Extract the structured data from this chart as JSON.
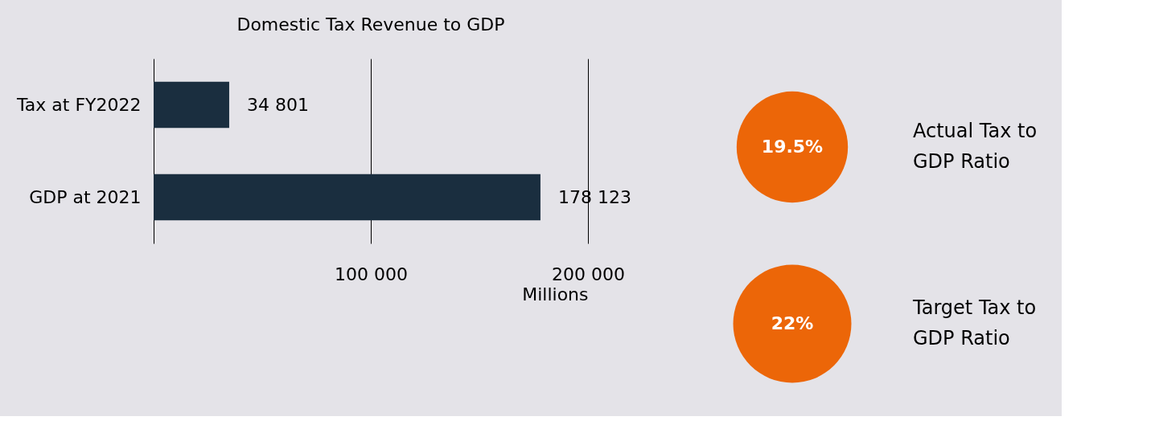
{
  "chart_data": [
    {
      "type": "bar",
      "orientation": "horizontal",
      "title": "Domestic Tax Revenue to GDP",
      "categories": [
        "Tax at FY2022",
        "GDP at 2021"
      ],
      "values": [
        34801,
        178123
      ],
      "color": "#1a2e3f",
      "value_labels": [
        "34 801",
        "178 123"
      ],
      "xlim": [
        0,
        200000
      ],
      "xticks": [
        {
          "value": 0,
          "label": null
        },
        {
          "value": 100000,
          "label": "100 000"
        },
        {
          "value": 200000,
          "label": "200 000"
        }
      ],
      "xlabel": "Millions",
      "grid": "x"
    },
    {
      "type": "other",
      "categories": [
        "Actual Tax to GDP Ratio",
        "Target Tax to GDP Ratio"
      ],
      "values": [
        19.5,
        22
      ],
      "value_labels": [
        "19.5%",
        "22%"
      ],
      "color": "#ec6608"
    }
  ]
}
